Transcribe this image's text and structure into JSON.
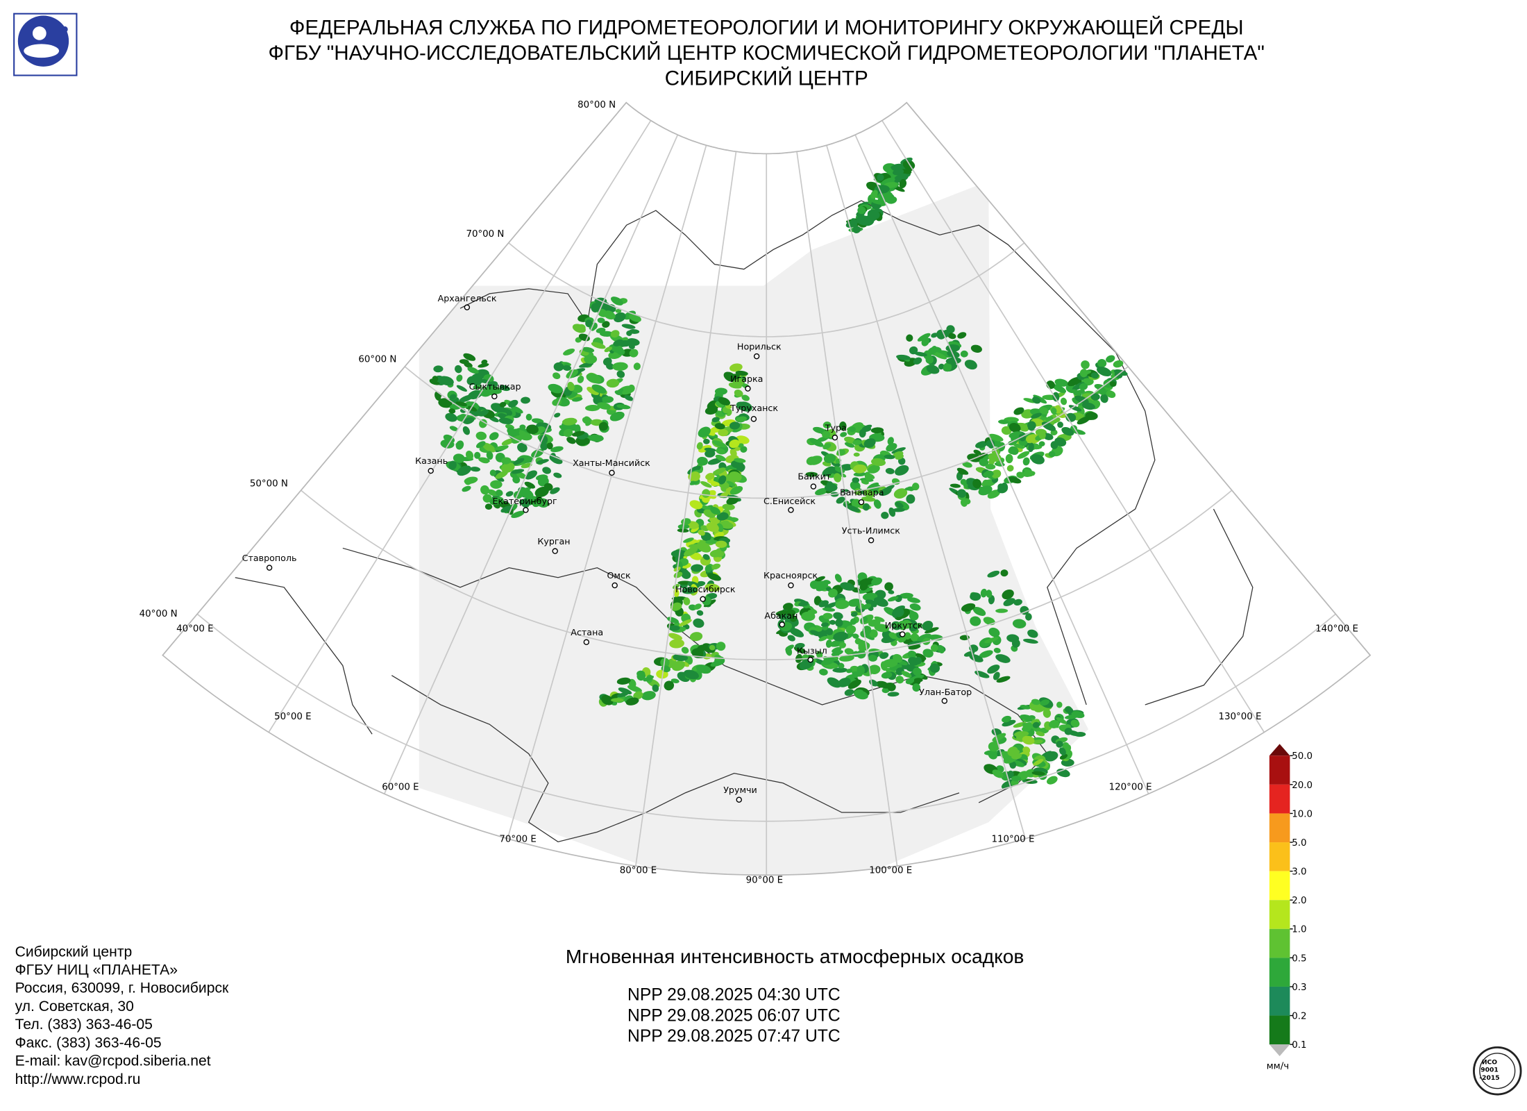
{
  "header": {
    "lines": [
      "ФЕДЕРАЛЬНАЯ СЛУЖБА ПО ГИДРОМЕТЕОРОЛОГИИ И МОНИТОРИНГУ ОКРУЖАЮЩЕЙ СРЕДЫ",
      "ФГБУ \"НАУЧНО-ИССЛЕДОВАТЕЛЬСКИЙ ЦЕНТР КОСМИЧЕСКОЙ ГИДРОМЕТЕОРОЛОГИИ \"ПЛАНЕТА\"",
      "СИБИРСКИЙ ЦЕНТР"
    ]
  },
  "map": {
    "parallels": [
      "80°00 N",
      "70°00 N",
      "60°00 N",
      "50°00 N",
      "40°00 N"
    ],
    "meridians": [
      "40°00 E",
      "50°00 E",
      "60°00 E",
      "70°00 E",
      "80°00 E",
      "90°00 E",
      "100°00 E",
      "110°00 E",
      "120°00 E",
      "130°00 E",
      "140°00 E"
    ],
    "cities": [
      "Архангельск",
      "Норильск",
      "Игарка",
      "Туруханск",
      "Сыктывкар",
      "Тура",
      "Казань",
      "Ханты-Мансийск",
      "Байкит",
      "Ванавара",
      "Екатеринбург",
      "С.Енисейск",
      "Усть-Илимск",
      "Курган",
      "Ставрополь",
      "Омск",
      "Красноярск",
      "Новосибирск",
      "Абакан",
      "Иркутск",
      "Астана",
      "Кызыл",
      "Улан-Батор",
      "Урумчи"
    ]
  },
  "legend": {
    "labels": [
      "50.0",
      "20.0",
      "10.0",
      "5.0",
      "3.0",
      "2.0",
      "1.0",
      "0.5",
      "0.3",
      "0.2",
      "0.1"
    ],
    "unit": "мм/ч"
  },
  "product": {
    "title": "Мгновенная интенсивность атмосферных осадков",
    "passes": [
      "NPP 29.08.2025  04:30 UTC",
      "NPP 29.08.2025  06:07 UTC",
      "NPP 29.08.2025  07:47 UTC"
    ]
  },
  "contacts": {
    "lines": [
      "Сибирский центр",
      "ФГБУ НИЦ «ПЛАНЕТА»",
      "Россия, 630099, г. Новосибирск",
      "ул. Советская, 30",
      "Тел. (383) 363-46-05",
      "Факс. (383) 363-46-05",
      "E-mail: kav@rcpod.siberia.net",
      "http://www.rcpod.ru"
    ]
  },
  "iso_badge": {
    "lines": [
      "ИСО",
      "9001",
      "-2015"
    ]
  }
}
